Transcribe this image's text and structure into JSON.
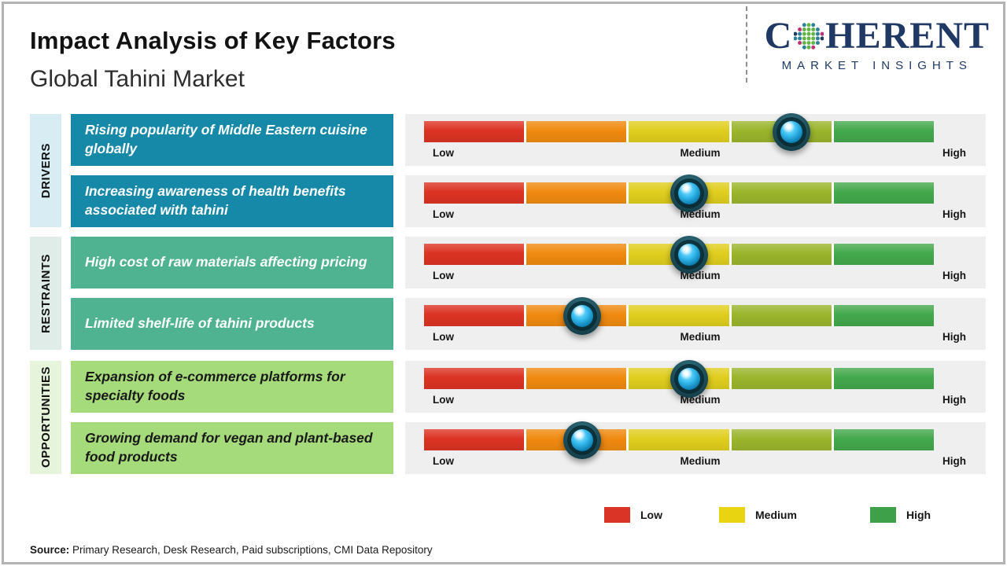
{
  "header": {
    "title": "Impact Analysis of Key Factors",
    "subtitle": "Global Tahini Market",
    "logo": {
      "brand_first_letter": "C",
      "brand_rest": "HERENT",
      "tagline": "MARKET INSIGHTS",
      "brand_color": "#1F3864"
    }
  },
  "chart_data": {
    "type": "bar",
    "subtype": "impact-rating-scale",
    "scale": {
      "labels": [
        "Low",
        "Medium",
        "High"
      ],
      "segment_colors": [
        "#DC3323",
        "#F08A10",
        "#E0CE1E",
        "#9BB52C",
        "#43A84C"
      ],
      "marker_color": "#38BDF0",
      "range": [
        0,
        100
      ]
    },
    "groups": [
      {
        "name": "DRIVERS",
        "label_bg": "#D8ECF4",
        "box_color": "#1789A8"
      },
      {
        "name": "RESTRAINTS",
        "label_bg": "#DFECE7",
        "box_color": "#4FB392"
      },
      {
        "name": "OPPORTUNITIES",
        "label_bg": "#E5F4DA",
        "box_color": "#A6DB7C"
      }
    ],
    "rows": [
      {
        "group": "DRIVERS",
        "factor": "Rising popularity of Middle Eastern cuisine globally",
        "impact_level": "Medium-High",
        "position_pct": 72
      },
      {
        "group": "DRIVERS",
        "factor": "Increasing awareness of health benefits associated with tahini",
        "impact_level": "Medium",
        "position_pct": 52
      },
      {
        "group": "RESTRAINTS",
        "factor": "High cost of raw materials affecting pricing",
        "impact_level": "Medium",
        "position_pct": 52
      },
      {
        "group": "RESTRAINTS",
        "factor": "Limited shelf-life of tahini products",
        "impact_level": "Low-Medium",
        "position_pct": 31
      },
      {
        "group": "OPPORTUNITIES",
        "factor": "Expansion of e-commerce platforms for specialty foods",
        "impact_level": "Medium",
        "position_pct": 52
      },
      {
        "group": "OPPORTUNITIES",
        "factor": "Growing demand for vegan and plant-based food products",
        "impact_level": "Low-Medium",
        "position_pct": 31
      }
    ],
    "legend": [
      {
        "label": "Low",
        "color": "#D93425"
      },
      {
        "label": "Medium",
        "color": "#E8D410"
      },
      {
        "label": "High",
        "color": "#3FA04A"
      }
    ]
  },
  "footer": {
    "source_label": "Source:",
    "source_text": " Primary Research, Desk Research, Paid subscriptions, CMI Data Repository"
  }
}
